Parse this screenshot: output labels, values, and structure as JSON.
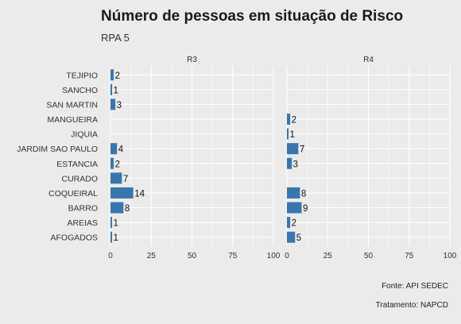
{
  "header": {
    "title": "Número de pessoas em situação de Risco",
    "subtitle": "RPA 5"
  },
  "footer": {
    "source": "Fonte: API SEDEC",
    "treatment": "Tratamento: NAPCD"
  },
  "colors": {
    "background": "#ebebeb",
    "bar": "#3a76ae",
    "grid": "#ffffff"
  },
  "chart_data": {
    "type": "bar",
    "orientation": "horizontal",
    "title": "Número de pessoas em situação de Risco",
    "subtitle": "RPA 5",
    "xlim": [
      0,
      100
    ],
    "xticks": [
      0,
      25,
      50,
      75,
      100
    ],
    "grid": true,
    "categories": [
      "TEJIPIO",
      "SANCHO",
      "SAN MARTIN",
      "MANGUEIRA",
      "JIQUIA",
      "JARDIM SAO PAULO",
      "ESTANCIA",
      "CURADO",
      "COQUEIRAL",
      "BARRO",
      "AREIAS",
      "AFOGADOS"
    ],
    "panels": [
      {
        "label": "R3",
        "values": [
          2,
          1,
          3,
          null,
          null,
          4,
          2,
          7,
          14,
          8,
          1,
          1
        ]
      },
      {
        "label": "R4",
        "values": [
          null,
          null,
          null,
          2,
          1,
          7,
          3,
          null,
          8,
          9,
          2,
          5
        ]
      }
    ]
  }
}
